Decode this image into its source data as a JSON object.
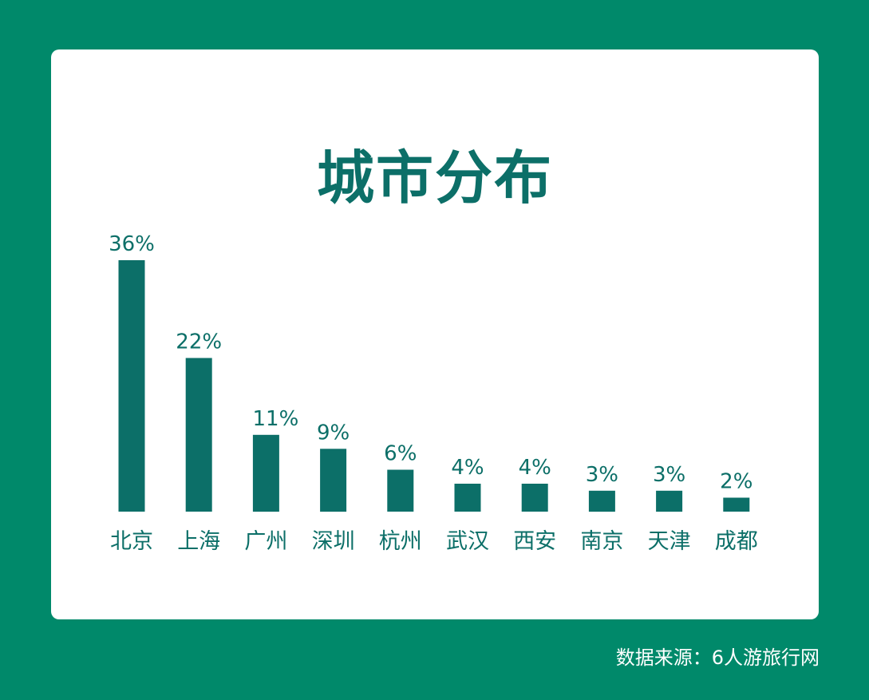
{
  "colors": {
    "background": "#00896a",
    "card": "#ffffff",
    "bar": "#0c6f68",
    "text": "#0c6f68",
    "source_text": "#ffffff"
  },
  "chart_data": {
    "type": "bar",
    "title": "城市分布",
    "categories": [
      "北京",
      "上海",
      "广州",
      "深圳",
      "杭州",
      "武汉",
      "西安",
      "南京",
      "天津",
      "成都"
    ],
    "values": [
      36,
      22,
      11,
      9,
      6,
      4,
      4,
      3,
      3,
      2
    ],
    "value_labels": [
      "36%",
      "22%",
      "11%",
      "9%",
      "6%",
      "4%",
      "4%",
      "3%",
      "3%",
      "2%"
    ],
    "unit": "%",
    "xlabel": "",
    "ylabel": "",
    "ylim": [
      0,
      36
    ],
    "grid": false,
    "legend": "none"
  },
  "footer": {
    "source": "数据来源：6人游旅行网"
  }
}
